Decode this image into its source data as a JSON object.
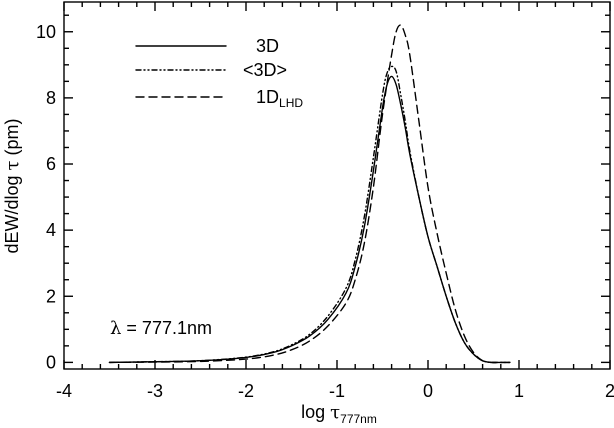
{
  "chart_data": {
    "type": "line",
    "xlabel": {
      "prefix": "log ",
      "symbol": "τ",
      "subscript": "777nm"
    },
    "ylabel": {
      "prefix": "dEW/dlog ",
      "symbol": "τ",
      "suffix": " (pm)"
    },
    "xlim": [
      -4,
      2
    ],
    "ylim": [
      -0.2,
      10.9
    ],
    "xticks": [
      -4,
      -3,
      -2,
      -1,
      0,
      1,
      2
    ],
    "yticks": [
      0,
      2,
      4,
      6,
      8,
      10
    ],
    "xticklabels": [
      "-4",
      "-3",
      "-2",
      "-1",
      "0",
      "1",
      "2"
    ],
    "yticklabels": [
      "0",
      "2",
      "4",
      "6",
      "8",
      "10"
    ],
    "annotation": {
      "symbol": "λ",
      "text": " = 777.1nm"
    },
    "legend": {
      "placement": "top-left",
      "entries": [
        {
          "label": "3D",
          "subscript": "",
          "style": "solid"
        },
        {
          "label": "<3D>",
          "subscript": "",
          "style": "dash-dot"
        },
        {
          "label": "1D",
          "subscript": "LHD",
          "style": "dashed"
        }
      ]
    },
    "series": [
      {
        "name": "3D",
        "style": "solid",
        "x": [
          -3.5,
          -3.0,
          -2.5,
          -2.0,
          -1.7,
          -1.5,
          -1.3,
          -1.1,
          -0.9,
          -0.8,
          -0.7,
          -0.6,
          -0.5,
          -0.45,
          -0.4,
          -0.35,
          -0.3,
          -0.25,
          -0.2,
          -0.1,
          0.0,
          0.1,
          0.2,
          0.3,
          0.4,
          0.5,
          0.6,
          0.7,
          0.8,
          0.9
        ],
        "y": [
          0.0,
          0.02,
          0.05,
          0.15,
          0.3,
          0.5,
          0.8,
          1.3,
          2.1,
          2.9,
          4.1,
          5.8,
          7.7,
          8.4,
          8.65,
          8.4,
          7.8,
          7.1,
          6.3,
          5.0,
          3.8,
          2.9,
          2.0,
          1.2,
          0.6,
          0.25,
          0.05,
          0.0,
          0.0,
          0.0
        ]
      },
      {
        "name": "<3D>",
        "style": "dash-dot",
        "x": [
          -3.5,
          -3.0,
          -2.5,
          -2.0,
          -1.7,
          -1.5,
          -1.3,
          -1.1,
          -0.9,
          -0.8,
          -0.7,
          -0.6,
          -0.5,
          -0.45,
          -0.4,
          -0.35,
          -0.3,
          -0.25,
          -0.2,
          -0.1,
          0.0,
          0.1,
          0.2,
          0.3,
          0.4,
          0.5,
          0.6,
          0.7,
          0.8,
          0.9
        ],
        "y": [
          0.0,
          0.02,
          0.05,
          0.16,
          0.32,
          0.53,
          0.85,
          1.4,
          2.25,
          3.1,
          4.4,
          6.2,
          8.1,
          8.75,
          8.95,
          8.8,
          8.1,
          7.3,
          6.4,
          5.0,
          3.8,
          2.9,
          2.0,
          1.2,
          0.6,
          0.25,
          0.05,
          0.0,
          0.0,
          0.0
        ]
      },
      {
        "name": "1D_LHD",
        "style": "dashed",
        "x": [
          -3.5,
          -3.0,
          -2.5,
          -2.0,
          -1.7,
          -1.5,
          -1.3,
          -1.1,
          -0.9,
          -0.8,
          -0.7,
          -0.6,
          -0.5,
          -0.4,
          -0.35,
          -0.3,
          -0.25,
          -0.2,
          -0.1,
          0.0,
          0.1,
          0.2,
          0.3,
          0.4,
          0.5,
          0.6,
          0.7,
          0.8,
          0.9
        ],
        "y": [
          0.0,
          0.01,
          0.03,
          0.1,
          0.22,
          0.38,
          0.65,
          1.1,
          1.8,
          2.5,
          3.6,
          5.3,
          7.5,
          9.3,
          10.0,
          10.2,
          9.9,
          9.3,
          7.3,
          5.3,
          3.9,
          2.7,
          1.6,
          0.8,
          0.3,
          0.05,
          0.0,
          0.0,
          0.0
        ]
      }
    ]
  }
}
